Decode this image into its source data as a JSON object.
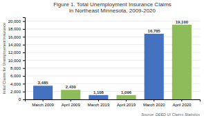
{
  "chart_data": {
    "type": "bar",
    "title": "Figure 1. Total Unemployment Insurance Claims\nin Northeast Minnesota, 2009-2020",
    "ylabel": "Initial Claims for Unemployment Insurance",
    "categories": [
      "March 2009",
      "April 2009",
      "March 2019",
      "April 2019",
      "March 2020",
      "April 2020"
    ],
    "values": [
      3485,
      2430,
      1108,
      1096,
      16785,
      19100
    ],
    "value_labels": [
      "3,485",
      "2,430",
      "1,108",
      "1,096",
      "16,785",
      "19,100"
    ],
    "colors": [
      "#4472c0",
      "#8fbc5a",
      "#4472c0",
      "#8fbc5a",
      "#4472c0",
      "#8fbc5a"
    ],
    "ylim": [
      0,
      21000
    ],
    "yticks": [
      0,
      {
        "value": 2000,
        "label": "2,000"
      },
      {
        "value": 4000,
        "label": "4,000"
      },
      {
        "value": 6000,
        "label": "6,000"
      },
      {
        "value": 8000,
        "label": "8,000"
      },
      {
        "value": 10000,
        "label": "10,000"
      },
      {
        "value": 12000,
        "label": "12,000"
      },
      {
        "value": 14000,
        "label": "14,000"
      },
      {
        "value": 16000,
        "label": "16,000"
      },
      {
        "value": 18000,
        "label": "18,000"
      },
      {
        "value": 20000,
        "label": "20,000"
      }
    ],
    "grid": true,
    "data_labels": true,
    "annotations": [
      "Source: DEED UI Claims Statistics"
    ]
  }
}
